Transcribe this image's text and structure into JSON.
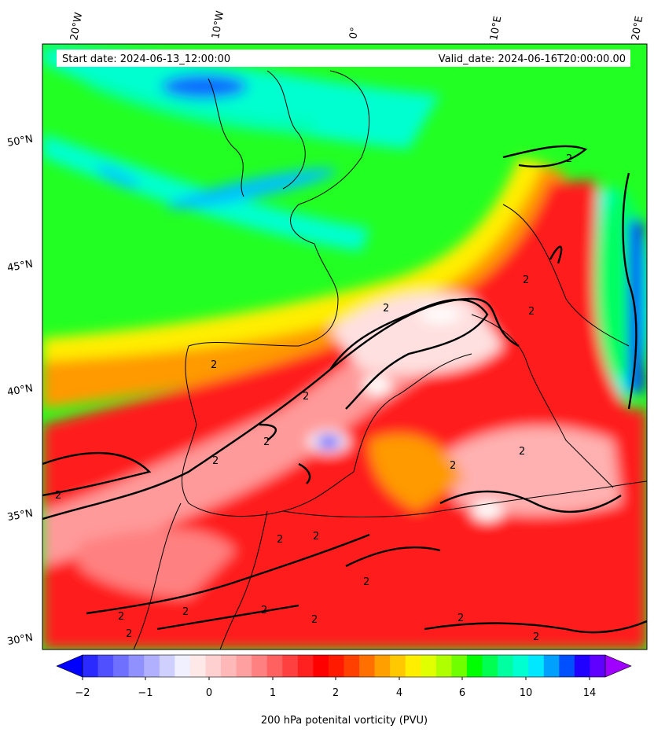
{
  "header": {
    "start_date": "Start date: 2024-06-13_12:00:00",
    "valid_date": "Valid_date: 2024-06-16T20:00:00.00"
  },
  "longitude_labels": [
    "20°W",
    "10°W",
    "0°",
    "10°E",
    "20°E"
  ],
  "latitude_labels": [
    "50°N",
    "45°N",
    "40°N",
    "35°N",
    "30°N"
  ],
  "contour_label": "2",
  "colorbar": {
    "title": "200 hPa potenital vorticity (PVU)",
    "tick_labels": [
      "−2",
      "−1",
      "0",
      "1",
      "2",
      "4",
      "6",
      "10",
      "14"
    ],
    "colors": [
      "#0000ff",
      "#2a2aff",
      "#5050ff",
      "#7070ff",
      "#9090ff",
      "#b0b0ff",
      "#d0d0ff",
      "#f0f0ff",
      "#ffe8e8",
      "#ffd0d0",
      "#ffb8b8",
      "#ffa0a0",
      "#ff8080",
      "#ff6060",
      "#ff4040",
      "#ff2020",
      "#ff0000",
      "#ff1a00",
      "#ff4000",
      "#ff7000",
      "#ffa000",
      "#ffc800",
      "#ffee00",
      "#e0ff00",
      "#b0ff00",
      "#70ff00",
      "#00ff00",
      "#00ff50",
      "#00ffa0",
      "#00ffd0",
      "#00e8ff",
      "#00a0ff",
      "#0050ff",
      "#2000ff",
      "#6000ff",
      "#a000ff"
    ]
  },
  "palette": {
    "background_green": "#22ff22",
    "cyan": "#00ffd8",
    "blue": "#0a6dff",
    "red": "#ff1a1a",
    "pink": "#ff9a9a",
    "orange": "#ff9a00"
  }
}
